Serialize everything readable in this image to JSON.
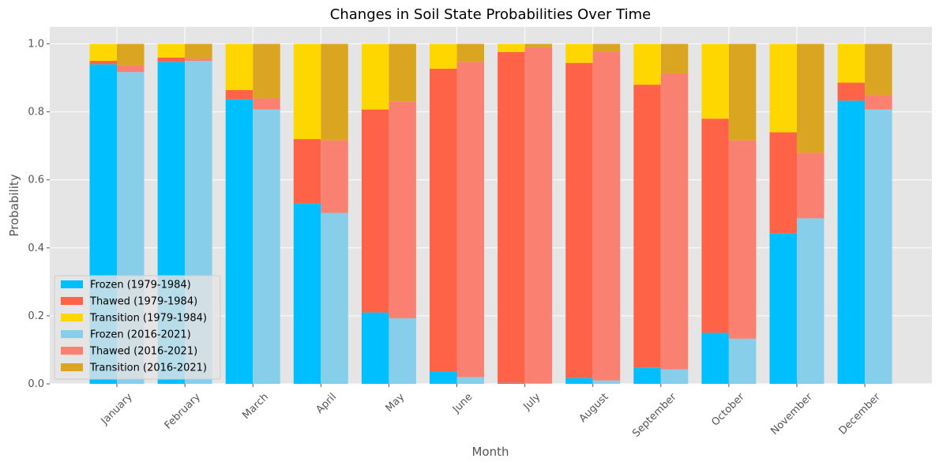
{
  "chart_data": {
    "type": "bar",
    "stacked": true,
    "grouped": true,
    "title": "Changes in Soil State Probabilities Over Time",
    "xlabel": "Month",
    "ylabel": "Probability",
    "ylim": [
      0,
      1.05
    ],
    "yticks": [
      "0.0",
      "0.2",
      "0.4",
      "0.6",
      "0.8",
      "1.0"
    ],
    "grid": true,
    "legend_position": "lower-left",
    "categories": [
      "January",
      "February",
      "March",
      "April",
      "May",
      "June",
      "July",
      "August",
      "September",
      "October",
      "November",
      "December"
    ],
    "groups": [
      {
        "period": "1979-1984",
        "series": [
          {
            "name": "Frozen (1979-1984)",
            "color": "#00BFFF",
            "values": [
              0.94,
              0.947,
              0.837,
              0.53,
              0.21,
              0.037,
              0.003,
              0.017,
              0.047,
              0.15,
              0.443,
              0.833
            ]
          },
          {
            "name": "Thawed (1979-1984)",
            "color": "#FF6347",
            "values": [
              0.01,
              0.013,
              0.027,
              0.19,
              0.597,
              0.89,
              0.973,
              0.927,
              0.833,
              0.63,
              0.297,
              0.053
            ]
          },
          {
            "name": "Transition (1979-1984)",
            "color": "#FFD700",
            "values": [
              0.05,
              0.04,
              0.136,
              0.28,
              0.193,
              0.073,
              0.024,
              0.056,
              0.12,
              0.22,
              0.26,
              0.114
            ]
          }
        ]
      },
      {
        "period": "2016-2021",
        "series": [
          {
            "name": "Frozen (2016-2021)",
            "color": "#87CEEB",
            "values": [
              0.917,
              0.95,
              0.807,
              0.503,
              0.193,
              0.02,
              0.002,
              0.01,
              0.043,
              0.133,
              0.487,
              0.807
            ]
          },
          {
            "name": "Thawed (2016-2021)",
            "color": "#FA8072",
            "values": [
              0.02,
              0.007,
              0.033,
              0.213,
              0.637,
              0.927,
              0.988,
              0.967,
              0.87,
              0.583,
              0.193,
              0.043
            ]
          },
          {
            "name": "Transition (2016-2021)",
            "color": "#DAA520",
            "values": [
              0.063,
              0.043,
              0.16,
              0.284,
              0.17,
              0.053,
              0.01,
              0.023,
              0.087,
              0.284,
              0.32,
              0.15
            ]
          }
        ]
      }
    ]
  }
}
